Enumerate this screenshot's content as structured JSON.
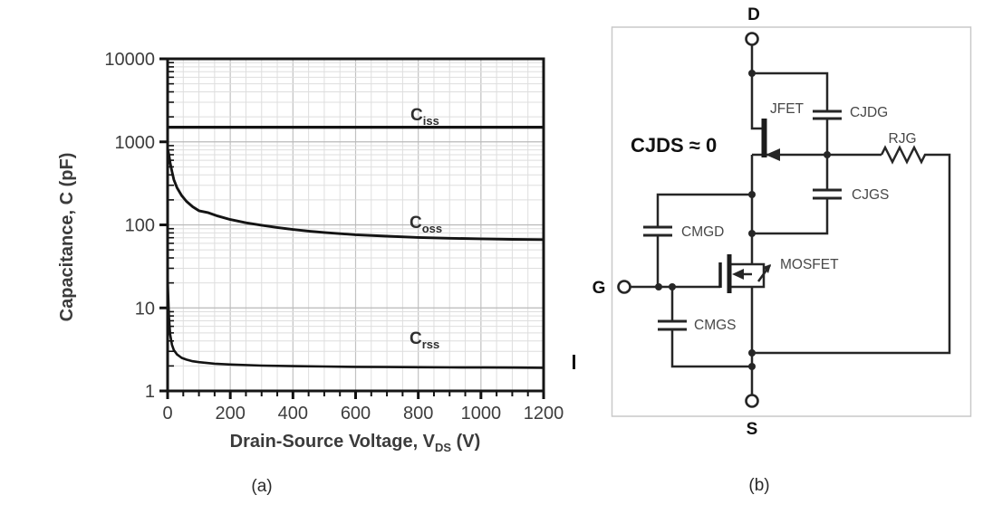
{
  "panel_a": {
    "caption": "(a)",
    "y_axis_title": "Capacitance, C (pF)",
    "x_axis_title": {
      "main": "Drain-Source Voltage, V",
      "sub": "DS",
      "unit": " (V)"
    },
    "y_tick_labels": [
      "10000",
      "1000",
      "100",
      "10",
      "1"
    ],
    "x_tick_labels": [
      "0",
      "200",
      "400",
      "600",
      "800",
      "1000",
      "1200"
    ]
  },
  "chart_data": {
    "type": "line",
    "title": "",
    "xlabel": "Drain-Source Voltage, V_DS (V)",
    "ylabel": "Capacitance, C (pF)",
    "x_axis": {
      "min": 0,
      "max": 1200,
      "major_ticks": [
        0,
        200,
        400,
        600,
        800,
        1000,
        1200
      ],
      "minor_step": 50,
      "scale": "linear"
    },
    "y_axis": {
      "min": 1,
      "max": 10000,
      "major_ticks": [
        1,
        10,
        100,
        1000,
        10000
      ],
      "scale": "log"
    },
    "grid": true,
    "legend": "inline-labels",
    "series": [
      {
        "name": "Ciss",
        "label": {
          "main": "C",
          "sub": "iss"
        },
        "points": [
          [
            0,
            1500
          ],
          [
            1200,
            1500
          ]
        ]
      },
      {
        "name": "Coss",
        "label": {
          "main": "C",
          "sub": "oss"
        },
        "points": [
          [
            0,
            820
          ],
          [
            4,
            700
          ],
          [
            8,
            560
          ],
          [
            14,
            440
          ],
          [
            20,
            350
          ],
          [
            30,
            280
          ],
          [
            45,
            225
          ],
          [
            60,
            192
          ],
          [
            80,
            165
          ],
          [
            100,
            148
          ],
          [
            130,
            140
          ],
          [
            160,
            128
          ],
          [
            200,
            116
          ],
          [
            250,
            106
          ],
          [
            300,
            99
          ],
          [
            350,
            93
          ],
          [
            400,
            88
          ],
          [
            450,
            84
          ],
          [
            500,
            81
          ],
          [
            600,
            76
          ],
          [
            700,
            73
          ],
          [
            800,
            70.5
          ],
          [
            900,
            69
          ],
          [
            1000,
            68
          ],
          [
            1100,
            67
          ],
          [
            1200,
            66.5
          ]
        ]
      },
      {
        "name": "Crss",
        "label": {
          "main": "C",
          "sub": "rss"
        },
        "points": [
          [
            0,
            24
          ],
          [
            4,
            8
          ],
          [
            8,
            4.8
          ],
          [
            14,
            3.6
          ],
          [
            20,
            3.1
          ],
          [
            30,
            2.75
          ],
          [
            45,
            2.5
          ],
          [
            60,
            2.38
          ],
          [
            80,
            2.28
          ],
          [
            100,
            2.22
          ],
          [
            150,
            2.13
          ],
          [
            200,
            2.08
          ],
          [
            300,
            2.02
          ],
          [
            400,
            1.99
          ],
          [
            500,
            1.97
          ],
          [
            600,
            1.95
          ],
          [
            700,
            1.94
          ],
          [
            800,
            1.93
          ],
          [
            900,
            1.92
          ],
          [
            1000,
            1.915
          ],
          [
            1100,
            1.91
          ],
          [
            1200,
            1.9
          ]
        ]
      }
    ]
  },
  "panel_b": {
    "caption": "(b)",
    "note": "CJDS ≈ 0",
    "terminals": {
      "drain": "D",
      "gate": "G",
      "source": "S"
    },
    "labels": {
      "jfet": "JFET",
      "cjdg": "CJDG",
      "rjg": "RJG",
      "cjgs": "CJGS",
      "cmgd": "CMGD",
      "mosfet": "MOSFET",
      "cmgs": "CMGS"
    }
  }
}
